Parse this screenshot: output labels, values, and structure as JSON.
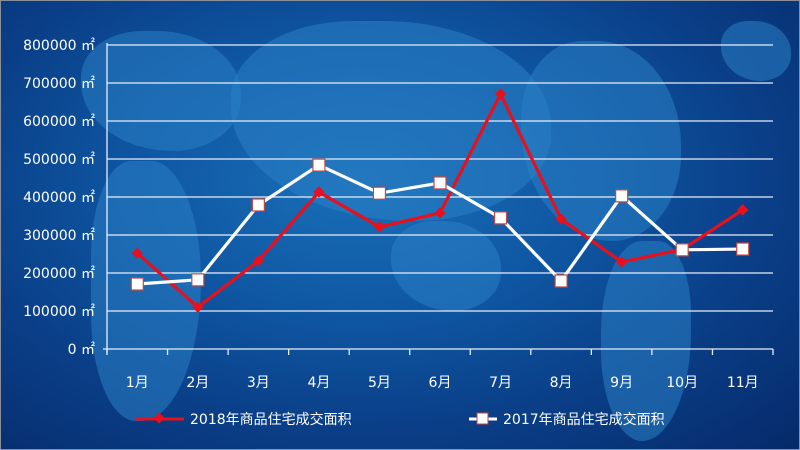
{
  "chart_data": {
    "type": "line",
    "title": "",
    "xlabel": "",
    "ylabel": "",
    "unit": "㎡",
    "ylim": [
      0,
      800000
    ],
    "yticks": [
      0,
      100000,
      200000,
      300000,
      400000,
      500000,
      600000,
      700000,
      800000
    ],
    "ytick_labels": [
      "0 ㎡",
      "100000 ㎡",
      "200000 ㎡",
      "300000 ㎡",
      "400000 ㎡",
      "500000 ㎡",
      "600000 ㎡",
      "700000 ㎡",
      "800000 ㎡"
    ],
    "categories": [
      "1月",
      "2月",
      "3月",
      "4月",
      "5月",
      "6月",
      "7月",
      "8月",
      "9月",
      "10月",
      "11月"
    ],
    "grid": true,
    "legend_position": "bottom",
    "series": [
      {
        "name": "2018年商品住宅成交面积",
        "color": "#e8101c",
        "marker": "diamond",
        "values": [
          252000,
          110000,
          232000,
          413000,
          321000,
          358000,
          671000,
          342000,
          229000,
          262000,
          366000
        ]
      },
      {
        "name": "2017年商品住宅成交面积",
        "color": "#ffffff",
        "marker": "square",
        "values": [
          171000,
          182000,
          379000,
          484000,
          410000,
          437000,
          345000,
          179000,
          403000,
          261000,
          263000
        ]
      }
    ]
  },
  "legend": {
    "items": [
      {
        "label": "2018年商品住宅成交面积"
      },
      {
        "label": "2017年商品住宅成交面积"
      }
    ]
  }
}
